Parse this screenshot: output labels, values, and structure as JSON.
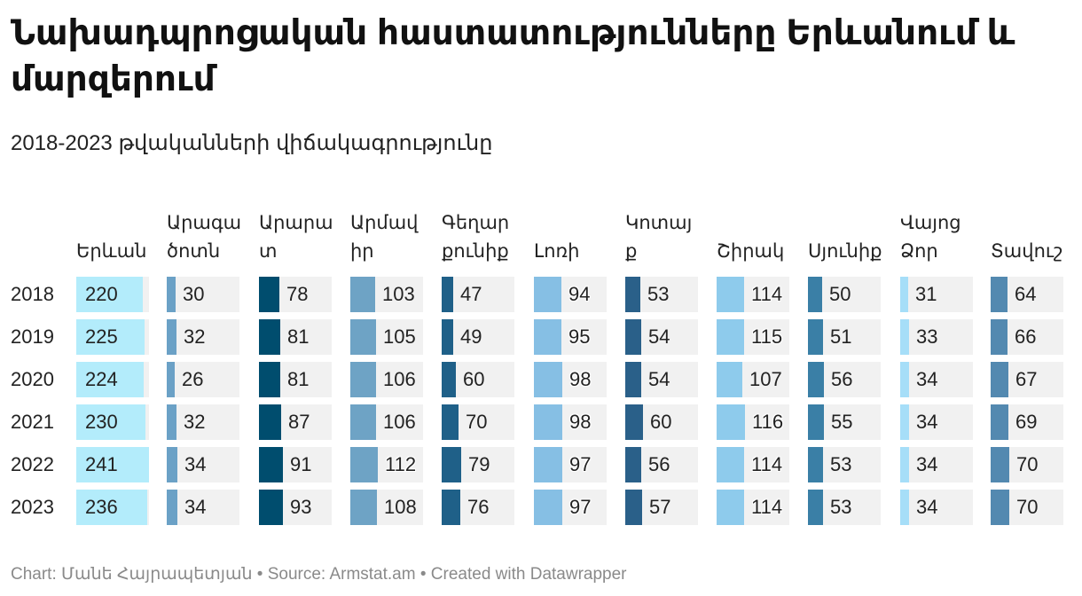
{
  "title": "Նախադպրոցական հաստատությունները Երևանում և մարզերում",
  "subtitle": "2018-2023 թվականների վիճակագրությունը",
  "chart_data": {
    "type": "table",
    "title": "Նախադպրոցական հաստատությունները Երևանում և մարզերում",
    "subtitle": "2018-2023 թվականների վիճակագրությունը",
    "rows": [
      "2018",
      "2019",
      "2020",
      "2021",
      "2022",
      "2023"
    ],
    "columns": [
      {
        "name": "Երևան",
        "color": "#b3ecfb",
        "values": [
          220,
          225,
          224,
          230,
          241,
          236
        ],
        "scale_max": 241
      },
      {
        "name": "Արագածոտն",
        "color": "#6ba1c6",
        "values": [
          30,
          32,
          26,
          32,
          34,
          34
        ],
        "scale_max": 240
      },
      {
        "name": "Արարատ",
        "color": "#004d6e",
        "values": [
          78,
          81,
          81,
          87,
          91,
          93
        ],
        "scale_max": 280
      },
      {
        "name": "Արմավիր",
        "color": "#6ea3c5",
        "values": [
          103,
          105,
          106,
          106,
          112,
          108
        ],
        "scale_max": 300
      },
      {
        "name": "Գեղարքունիք",
        "color": "#1f6088",
        "values": [
          47,
          49,
          60,
          70,
          79,
          76
        ],
        "scale_max": 300
      },
      {
        "name": "Լոռի",
        "color": "#86bfe4",
        "values": [
          94,
          95,
          98,
          98,
          97,
          97
        ],
        "scale_max": 250
      },
      {
        "name": "Կոտայք",
        "color": "#2a6089",
        "values": [
          53,
          54,
          54,
          60,
          56,
          57
        ],
        "scale_max": 250
      },
      {
        "name": "Շիրակ",
        "color": "#8ecbec",
        "values": [
          114,
          115,
          107,
          116,
          114,
          114
        ],
        "scale_max": 300
      },
      {
        "name": "Սյունիք",
        "color": "#3a7fa6",
        "values": [
          50,
          51,
          56,
          55,
          53,
          53
        ],
        "scale_max": 250
      },
      {
        "name": "Վայոց Ձոր",
        "color": "#a6def8",
        "values": [
          31,
          33,
          34,
          34,
          34,
          34
        ],
        "scale_max": 280
      },
      {
        "name": "Տավուշ",
        "color": "#5389b0",
        "values": [
          64,
          66,
          67,
          69,
          70,
          70
        ],
        "scale_max": 280
      }
    ]
  },
  "footer": {
    "chart_credit": "Chart: Մանե Հայրապետյան",
    "separator": " • ",
    "source": "Source: Armstat.am",
    "created_with": "Created with Datawrapper"
  }
}
